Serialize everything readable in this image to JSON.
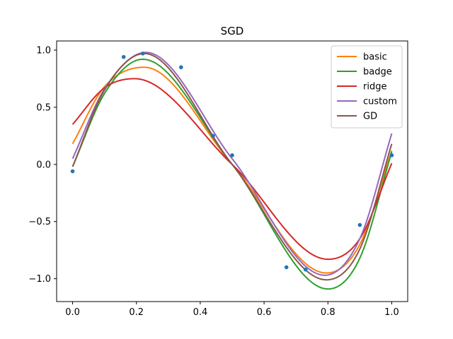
{
  "chart_data": {
    "type": "line",
    "title": "SGD",
    "xlabel": "",
    "ylabel": "",
    "xlim": [
      -0.05,
      1.05
    ],
    "ylim": [
      -1.2,
      1.08
    ],
    "xticks": [
      0.0,
      0.2,
      0.4,
      0.6,
      0.8,
      1.0
    ],
    "xtick_labels": [
      "0.0",
      "0.2",
      "0.4",
      "0.6",
      "0.8",
      "1.0"
    ],
    "yticks": [
      -1.0,
      -0.5,
      0.0,
      0.5,
      1.0
    ],
    "ytick_labels": [
      "−1.0",
      "−0.5",
      "0.0",
      "0.5",
      "1.0"
    ],
    "grid": false,
    "legend_position": "top-right",
    "scatter": {
      "color": "#1f77b4",
      "x": [
        0.0,
        0.16,
        0.22,
        0.34,
        0.44,
        0.5,
        0.67,
        0.73,
        0.9,
        1.0
      ],
      "y": [
        -0.06,
        0.94,
        0.97,
        0.85,
        0.25,
        0.08,
        -0.9,
        -0.92,
        -0.53,
        0.08
      ]
    },
    "series": [
      {
        "name": "basic",
        "color": "#ff7f0e",
        "x": [
          0.0,
          0.1,
          0.225,
          0.5,
          0.795,
          0.9,
          1.0
        ],
        "y": [
          0.18,
          0.68,
          0.85,
          0.0,
          -0.95,
          -0.7,
          0.12
        ]
      },
      {
        "name": "badge",
        "color": "#2ca02c",
        "x": [
          0.0,
          0.1,
          0.22,
          0.5,
          0.8,
          0.9,
          1.0
        ],
        "y": [
          -0.02,
          0.62,
          0.92,
          0.0,
          -1.09,
          -0.82,
          0.11
        ]
      },
      {
        "name": "ridge",
        "color": "#d62728",
        "x": [
          0.0,
          0.1,
          0.195,
          0.5,
          0.8,
          0.9,
          1.0
        ],
        "y": [
          0.35,
          0.67,
          0.75,
          0.0,
          -0.83,
          -0.65,
          0.01
        ]
      },
      {
        "name": "custom",
        "color": "#9467bd",
        "x": [
          0.0,
          0.1,
          0.23,
          0.5,
          0.79,
          0.9,
          1.0
        ],
        "y": [
          0.05,
          0.66,
          0.98,
          0.05,
          -0.97,
          -0.65,
          0.27
        ]
      },
      {
        "name": "GD",
        "color": "#8c564b",
        "x": [
          0.0,
          0.1,
          0.225,
          0.5,
          0.795,
          0.9,
          1.0
        ],
        "y": [
          -0.02,
          0.65,
          0.97,
          0.0,
          -1.01,
          -0.74,
          0.18
        ]
      }
    ]
  }
}
